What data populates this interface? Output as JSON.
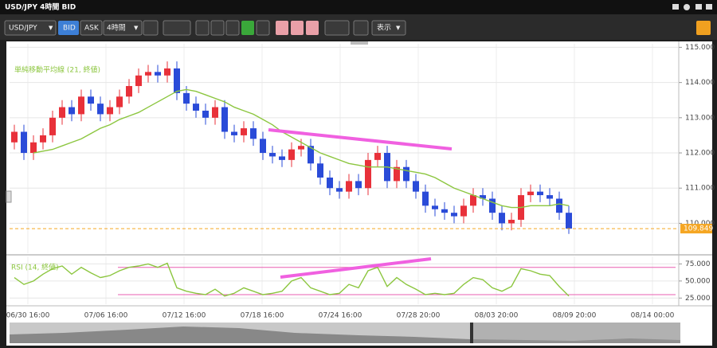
{
  "window": {
    "title": "USD/JPY 4時間 BID"
  },
  "toolbar": {
    "symbol": "USD/JPY",
    "bid": "BID",
    "ask": "ASK",
    "timeframe": "4時間",
    "view": "表示"
  },
  "time_axis": {
    "labels": [
      "06/30 16:00",
      "07/06 16:00",
      "07/12 16:00",
      "07/18 16:00",
      "07/24 16:00",
      "07/28 20:00",
      "08/03 20:00",
      "08/09 20:00",
      "08/14 00:00"
    ]
  },
  "chart_data": [
    {
      "type": "candlestick",
      "up_color": "#e8313a",
      "down_color": "#2a4bd8",
      "open": [
        112.3,
        112.6,
        112.0,
        112.3,
        112.5,
        113.0,
        113.3,
        113.1,
        113.6,
        113.4,
        113.1,
        113.3,
        113.6,
        113.9,
        114.2,
        114.3,
        114.2,
        114.4,
        113.7,
        113.4,
        113.2,
        113.0,
        113.3,
        112.6,
        112.5,
        112.7,
        112.4,
        112.0,
        111.9,
        111.8,
        112.1,
        112.2,
        111.7,
        111.3,
        111.0,
        110.9,
        111.2,
        111.0,
        111.8,
        112.0,
        111.2,
        111.6,
        111.2,
        110.9,
        110.5,
        110.4,
        110.3,
        110.2,
        110.5,
        110.8,
        110.7,
        110.3,
        110.0,
        110.1,
        110.8,
        110.9,
        110.8,
        110.7,
        110.3
      ],
      "high": [
        112.8,
        112.8,
        112.5,
        112.7,
        113.2,
        113.5,
        113.5,
        113.8,
        113.8,
        113.6,
        113.5,
        113.8,
        114.1,
        114.4,
        114.5,
        114.5,
        114.6,
        114.6,
        113.9,
        113.6,
        113.4,
        113.5,
        113.5,
        112.8,
        112.9,
        112.9,
        112.6,
        112.2,
        112.1,
        112.3,
        112.4,
        112.4,
        111.9,
        111.5,
        111.2,
        111.4,
        111.4,
        112.0,
        112.2,
        112.2,
        111.8,
        111.8,
        111.4,
        111.1,
        110.7,
        110.6,
        110.5,
        110.7,
        111.0,
        111.0,
        110.9,
        110.5,
        110.3,
        111.0,
        111.1,
        111.1,
        111.0,
        110.9,
        110.5
      ],
      "low": [
        112.1,
        111.8,
        111.8,
        112.1,
        112.3,
        112.8,
        112.9,
        112.9,
        113.2,
        112.9,
        112.9,
        113.1,
        113.4,
        113.7,
        114.0,
        114.0,
        114.0,
        113.5,
        113.2,
        113.0,
        112.8,
        112.8,
        112.4,
        112.3,
        112.3,
        112.2,
        111.8,
        111.7,
        111.6,
        111.6,
        111.9,
        111.5,
        111.1,
        110.8,
        110.7,
        110.7,
        110.8,
        110.8,
        111.6,
        111.0,
        111.0,
        111.0,
        110.7,
        110.3,
        110.2,
        110.1,
        110.0,
        110.0,
        110.3,
        110.5,
        110.1,
        109.8,
        109.8,
        109.9,
        110.6,
        110.6,
        110.5,
        110.1,
        109.7
      ],
      "close": [
        112.6,
        112.0,
        112.3,
        112.5,
        113.0,
        113.3,
        113.1,
        113.6,
        113.4,
        113.1,
        113.3,
        113.6,
        113.9,
        114.2,
        114.3,
        114.2,
        114.4,
        113.7,
        113.4,
        113.2,
        113.0,
        113.3,
        112.6,
        112.5,
        112.7,
        112.4,
        112.0,
        111.9,
        111.8,
        112.1,
        112.2,
        111.7,
        111.3,
        111.0,
        110.9,
        111.2,
        111.0,
        111.8,
        112.0,
        111.2,
        111.6,
        111.2,
        110.9,
        110.5,
        110.4,
        110.3,
        110.2,
        110.5,
        110.8,
        110.7,
        110.3,
        110.0,
        110.1,
        110.8,
        110.9,
        110.8,
        110.7,
        110.3,
        109.85
      ],
      "moving_average": {
        "label": "単純移動平均線 (21, 終値)",
        "color": "#8cc63f",
        "values": [
          null,
          null,
          112.0,
          112.05,
          112.1,
          112.2,
          112.3,
          112.4,
          112.55,
          112.7,
          112.8,
          112.95,
          113.05,
          113.15,
          113.3,
          113.45,
          113.6,
          113.75,
          113.8,
          113.75,
          113.65,
          113.55,
          113.45,
          113.3,
          113.2,
          113.1,
          112.95,
          112.8,
          112.6,
          112.45,
          112.3,
          112.15,
          112.0,
          111.9,
          111.8,
          111.7,
          111.65,
          111.6,
          111.6,
          111.6,
          111.55,
          111.5,
          111.45,
          111.4,
          111.3,
          111.15,
          111.0,
          110.9,
          110.8,
          110.7,
          110.6,
          110.5,
          110.45,
          110.45,
          110.5,
          110.5,
          110.5,
          110.55,
          110.5
        ]
      },
      "current_price": 109.849,
      "current_price_color": "#f5a623",
      "ylim": [
        109.15,
        115.1
      ],
      "yticks": [
        {
          "value": 110,
          "label": "110.000"
        },
        {
          "value": 111,
          "label": "111.000"
        },
        {
          "value": 112,
          "label": "112.000"
        },
        {
          "value": 113,
          "label": "113.000"
        },
        {
          "value": 114,
          "label": "114.000"
        },
        {
          "value": 115,
          "label": "115.000"
        }
      ],
      "grid": true
    },
    {
      "type": "line",
      "label": "RSI (14, 終値)",
      "color": "#8cc63f",
      "values": [
        55,
        45,
        50,
        60,
        68,
        72,
        60,
        70,
        62,
        55,
        58,
        65,
        70,
        72,
        75,
        70,
        76,
        40,
        35,
        32,
        30,
        38,
        28,
        32,
        40,
        35,
        30,
        32,
        35,
        50,
        55,
        40,
        35,
        30,
        32,
        45,
        40,
        65,
        70,
        42,
        55,
        45,
        38,
        30,
        32,
        30,
        32,
        45,
        55,
        52,
        40,
        35,
        42,
        68,
        65,
        60,
        58,
        42,
        28
      ],
      "levels": [
        70,
        30
      ],
      "level_color": "#e85fb0",
      "ylim": [
        16,
        86
      ],
      "yticks": [
        {
          "value": 25,
          "label": "25.000"
        },
        {
          "value": 50,
          "label": "50.000"
        },
        {
          "value": 75,
          "label": "75.000"
        }
      ],
      "grid": true
    }
  ]
}
